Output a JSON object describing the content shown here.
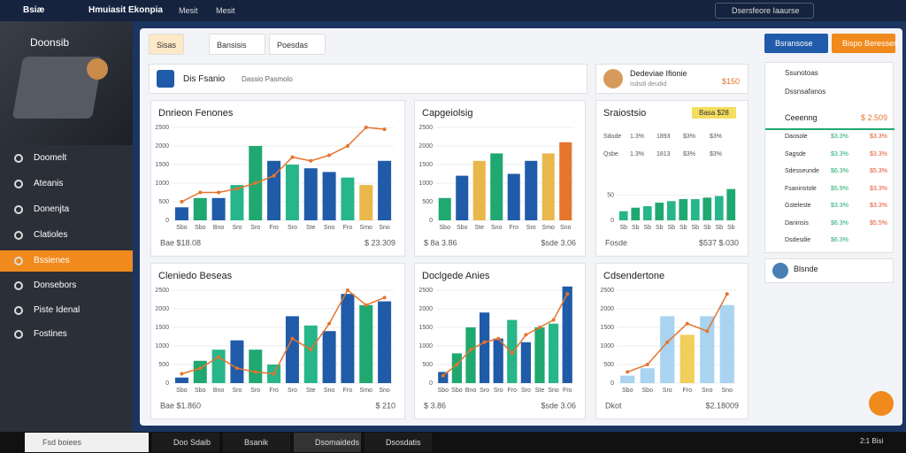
{
  "topbar": {
    "brand": "Bsiæ",
    "app": "Hmuiasit Ekonpia",
    "menu": [
      "Mesit",
      "Mesit"
    ],
    "search": "Dsersfeore Iaaurse"
  },
  "sidebar": {
    "title": "Doonsib",
    "items": [
      "Doomelt",
      "Ateanis",
      "Donenjta",
      "Clatioles",
      "Bssienes",
      "Donsebors",
      "Piste Idenal",
      "Fostines"
    ],
    "active": 4
  },
  "tabs": [
    "Sisas",
    "Bansisis",
    "Poesdas"
  ],
  "filter": {
    "title": "Dis Fsanio",
    "dropdown": "Dassio Pasmolo"
  },
  "profile": {
    "name": "Dedeviae Ifionie",
    "sub": "Isdsdi deudid",
    "amount": "$150"
  },
  "actions": [
    "Bsransose",
    "Bispo Beressen"
  ],
  "side_list": {
    "dropdowns": [
      "Ssunotoas",
      "Dssnsafanos"
    ],
    "heading": "Ceeenng",
    "heading_value": "$ 2.509",
    "rows": [
      [
        "Daosole",
        "$3.3%",
        "$3.3%"
      ],
      [
        "Sagsde",
        "$3.3%",
        "$3.3%"
      ],
      [
        "Sdesseunde",
        "$6.3%",
        "$5.3%"
      ],
      [
        "Fsaninstole",
        "$5.9%",
        "$3.3%"
      ],
      [
        "Gsteleste",
        "$3.3%",
        "$3.3%"
      ],
      [
        "Daninsis",
        "$6.3%",
        "$5.5%"
      ],
      [
        "Dsdesdie",
        "$6.3%"
      ]
    ]
  },
  "user": {
    "name": "Blsnde"
  },
  "taskbar": {
    "search": "Fsd boiees",
    "apps": [
      "Doo Sdaib",
      "Bsanik",
      "Dsomaideds",
      "Dsosdatis"
    ],
    "time": "2:1 Bisi"
  },
  "charts": [
    {
      "title": "Dnrieon Fenones",
      "ylim": [
        0,
        2500
      ],
      "yticks": [
        0,
        500,
        1000,
        1500,
        2000,
        2500
      ],
      "categories": [
        "Sbo",
        "Sbo",
        "Bno",
        "Sro",
        "Sro",
        "Fro",
        "Sro",
        "Ste",
        "Sno",
        "Fro",
        "Smo",
        "Sno"
      ],
      "bars": [
        350,
        600,
        600,
        950,
        2000,
        1600,
        1500,
        1400,
        1300,
        1150,
        950,
        1600
      ],
      "bar_colors": [
        "#1f5ba8",
        "#1fa870",
        "#1f5ba8",
        "#27b58a",
        "#1fa870",
        "#1f5ba8",
        "#27b58a",
        "#1f5ba8",
        "#1f5ba8",
        "#27b58a",
        "#e8b84a",
        "#1f5ba8"
      ],
      "line": [
        500,
        750,
        750,
        850,
        1000,
        1200,
        1700,
        1600,
        1750,
        2000,
        2500,
        2450
      ],
      "line_color": "#e5742d",
      "footer_left": "Bae $18.08",
      "footer_right": "$ 23.309"
    },
    {
      "title": "Capgeiolsig",
      "ylim": [
        0,
        2500
      ],
      "yticks": [
        0,
        500,
        1000,
        1500,
        2000,
        2500
      ],
      "categories": [
        "Sbo",
        "Sbo",
        "Ste",
        "Sno",
        "Fro",
        "Sro",
        "Smo",
        "Sno"
      ],
      "bars": [
        600,
        1200,
        1600,
        1800,
        1250,
        1600,
        1800,
        2100
      ],
      "bar_colors": [
        "#1fa870",
        "#1f5ba8",
        "#e8b84a",
        "#1fa870",
        "#1f5ba8",
        "#1f5ba8",
        "#e8b84a",
        "#e5742d"
      ],
      "footer_left": "$ 8a 3.86",
      "footer_right": "$sde 3.06"
    },
    {
      "title": "Sraiostsio",
      "badge": "Basa $28",
      "ylim": [
        0,
        100
      ],
      "yticks": [
        0,
        50
      ],
      "table": [
        [
          "Sdode",
          "1.3%",
          "1893",
          "$3%",
          "$3%"
        ],
        [
          "Qsbe",
          "1.3%",
          "1813",
          "$3%",
          "$3%"
        ]
      ],
      "categories": [
        "Sb",
        "Sb",
        "Sb",
        "Sb",
        "Sb",
        "Sb",
        "Sb",
        "Sb",
        "Sb",
        "Sb"
      ],
      "bars": [
        18,
        25,
        28,
        35,
        38,
        42,
        42,
        45,
        48,
        62
      ],
      "bar_colors": [
        "#27b58a",
        "#1fa870",
        "#27b58a",
        "#1fa870",
        "#27b58a",
        "#1fa870",
        "#27b58a",
        "#1fa870",
        "#27b58a",
        "#1fa870"
      ],
      "footer_left": "Fosde",
      "footer_right": "$537 $.030"
    },
    {
      "title": "Cleniedo Beseas",
      "ylim": [
        0,
        2500
      ],
      "yticks": [
        0,
        500,
        1000,
        1500,
        2000,
        2500
      ],
      "categories": [
        "Sbo",
        "Sbo",
        "Bno",
        "Sro",
        "Sro",
        "Fro",
        "Sro",
        "Ste",
        "Sno",
        "Fro",
        "Smo",
        "Sno"
      ],
      "bars": [
        150,
        600,
        900,
        1150,
        900,
        500,
        1800,
        1550,
        1400,
        2400,
        2100,
        2200
      ],
      "bar_colors": [
        "#1f5ba8",
        "#1fa870",
        "#27b58a",
        "#1f5ba8",
        "#1fa870",
        "#27b58a",
        "#1f5ba8",
        "#27b58a",
        "#1f5ba8",
        "#1f5ba8",
        "#1fa870",
        "#1f5ba8"
      ],
      "line": [
        250,
        400,
        700,
        400,
        300,
        250,
        1200,
        900,
        1600,
        2500,
        2100,
        2300
      ],
      "line_color": "#e5742d",
      "footer_left": "Bae $1.860",
      "footer_right": "$ 210"
    },
    {
      "title": "Doclgede Anies",
      "ylim": [
        0,
        2500
      ],
      "yticks": [
        0,
        500,
        1000,
        1500,
        2000,
        2500
      ],
      "categories": [
        "Sbo",
        "Sbo",
        "Bno",
        "Sro",
        "Sro",
        "Fro",
        "Sro",
        "Ste",
        "Sno",
        "Fro"
      ],
      "bars": [
        300,
        800,
        1500,
        1900,
        1200,
        1700,
        1100,
        1500,
        1600,
        2600
      ],
      "bar_colors": [
        "#1f5ba8",
        "#1fa870",
        "#1fa870",
        "#1f5ba8",
        "#1f5ba8",
        "#27b58a",
        "#1f5ba8",
        "#1fa870",
        "#27b58a",
        "#1f5ba8"
      ],
      "line": [
        200,
        500,
        900,
        1100,
        1200,
        800,
        1300,
        1500,
        1700,
        2400
      ],
      "line_color": "#e5742d",
      "footer_left": "$ 3.86",
      "footer_right": "$sde 3.06"
    },
    {
      "title": "Cdsendertone",
      "ylim": [
        0,
        2500
      ],
      "yticks": [
        0,
        500,
        1000,
        1500,
        2000,
        2500
      ],
      "categories": [
        "Sbo",
        "Sbo",
        "Sro",
        "Fro",
        "Sno",
        "Sno"
      ],
      "bars": [
        200,
        400,
        1800,
        1300,
        1800,
        2100
      ],
      "bar_colors": [
        "#a9d3f0",
        "#a9d3f0",
        "#a9d3f0",
        "#f0cf5a",
        "#a9d3f0",
        "#a9d3f0"
      ],
      "line": [
        300,
        500,
        1100,
        1600,
        1400,
        2400
      ],
      "line_color": "#e5742d",
      "footer_left": "Dkot",
      "footer_right": "$2.18009"
    }
  ]
}
